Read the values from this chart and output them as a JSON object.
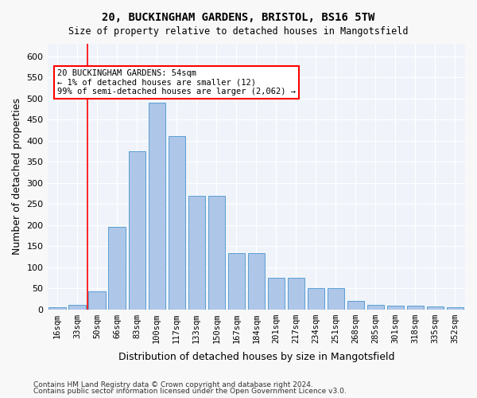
{
  "title1": "20, BUCKINGHAM GARDENS, BRISTOL, BS16 5TW",
  "title2": "Size of property relative to detached houses in Mangotsfield",
  "xlabel": "Distribution of detached houses by size in Mangotsfield",
  "ylabel": "Number of detached properties",
  "bar_labels": [
    "16sqm",
    "33sqm",
    "50sqm",
    "66sqm",
    "83sqm",
    "100sqm",
    "117sqm",
    "133sqm",
    "150sqm",
    "167sqm",
    "184sqm",
    "201sqm",
    "217sqm",
    "234sqm",
    "251sqm",
    "268sqm",
    "285sqm",
    "301sqm",
    "318sqm",
    "335sqm",
    "352sqm"
  ],
  "bar_values": [
    5,
    10,
    42,
    195,
    375,
    490,
    410,
    270,
    270,
    133,
    133,
    75,
    75,
    50,
    50,
    20,
    11,
    8,
    8,
    6,
    5
  ],
  "bar_color": "#aec6e8",
  "bar_edge_color": "#5a9fd4",
  "annotation_text": "20 BUCKINGHAM GARDENS: 54sqm\n← 1% of detached houses are smaller (12)\n99% of semi-detached houses are larger (2,062) →",
  "annotation_bar_index": 2,
  "vline_x": 2,
  "property_sqm": 54,
  "ylim": [
    0,
    630
  ],
  "yticks": [
    0,
    50,
    100,
    150,
    200,
    250,
    300,
    350,
    400,
    450,
    500,
    550,
    600
  ],
  "background_color": "#f0f4fa",
  "grid_color": "#ffffff",
  "footer1": "Contains HM Land Registry data © Crown copyright and database right 2024.",
  "footer2": "Contains public sector information licensed under the Open Government Licence v3.0."
}
